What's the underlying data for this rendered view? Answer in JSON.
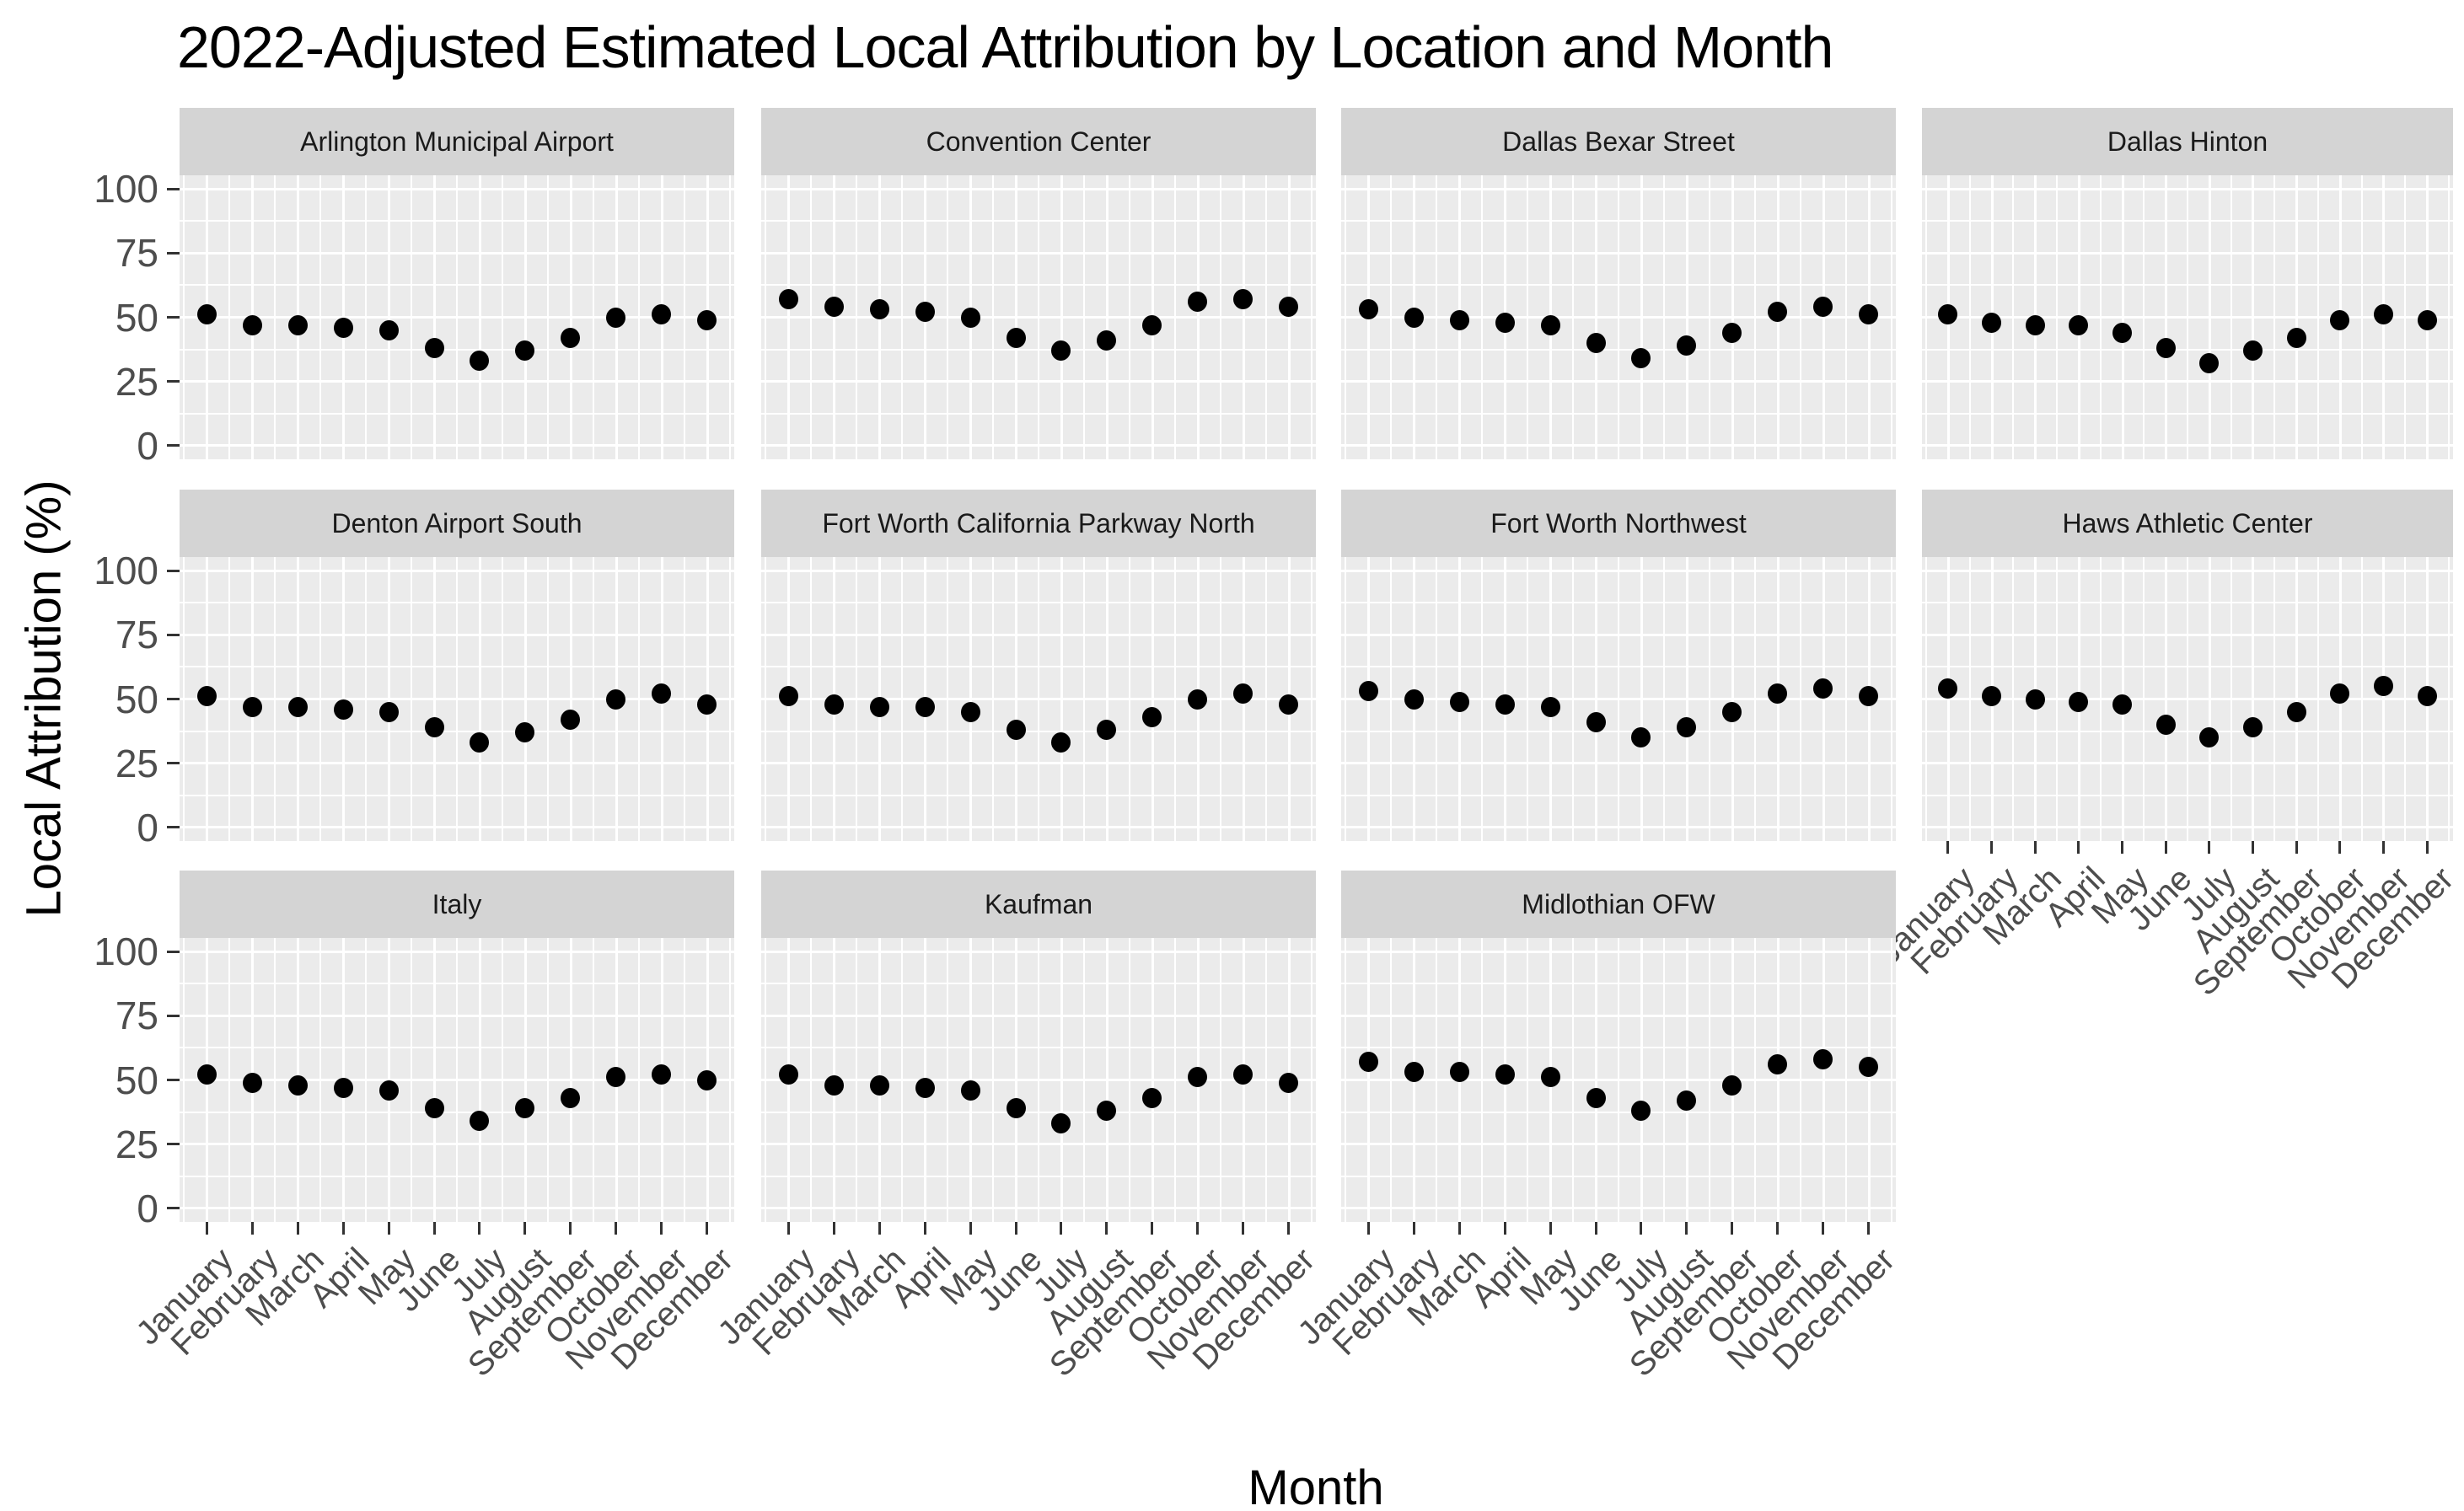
{
  "title": "2022-Adjusted Estimated Local Attribution by Location and Month",
  "axes": {
    "x_title": "Month",
    "y_title": "Local Attribution (%)",
    "y_ticks": [
      100,
      75,
      50,
      25,
      0
    ],
    "months": [
      "January",
      "February",
      "March",
      "April",
      "May",
      "June",
      "July",
      "August",
      "September",
      "October",
      "November",
      "December"
    ]
  },
  "colors": {
    "panel_background": "#EBEBEB",
    "strip_background": "#D4D4D4",
    "gridline": "#FFFFFF",
    "point": "#000000",
    "tick_label": "#4D4D4D",
    "axis_tick": "#333333",
    "title": "#000000"
  },
  "chart_data": {
    "type": "scatter",
    "title": "2022-Adjusted Estimated Local Attribution by Location and Month",
    "xlabel": "Month",
    "ylabel": "Local Attribution (%)",
    "ylim": [
      0,
      100
    ],
    "y_major_breaks": [
      0,
      25,
      50,
      75,
      100
    ],
    "y_minor_breaks": [
      12.5,
      37.5,
      62.5,
      87.5
    ],
    "grid": true,
    "legend_position": "none",
    "facet_layout": {
      "nrow": 3,
      "ncol": 4
    },
    "categories": [
      "January",
      "February",
      "March",
      "April",
      "May",
      "June",
      "July",
      "August",
      "September",
      "October",
      "November",
      "December"
    ],
    "facets": [
      {
        "name": "Arlington Municipal Airport",
        "values": [
          51,
          47,
          47,
          46,
          45,
          38,
          33,
          37,
          42,
          50,
          51,
          49
        ]
      },
      {
        "name": "Convention Center",
        "values": [
          57,
          54,
          53,
          52,
          50,
          42,
          37,
          41,
          47,
          56,
          57,
          54
        ]
      },
      {
        "name": "Dallas Bexar Street",
        "values": [
          53,
          50,
          49,
          48,
          47,
          40,
          34,
          39,
          44,
          52,
          54,
          51
        ]
      },
      {
        "name": "Dallas Hinton",
        "values": [
          51,
          48,
          47,
          47,
          44,
          38,
          32,
          37,
          42,
          49,
          51,
          49
        ]
      },
      {
        "name": "Denton Airport South",
        "values": [
          51,
          47,
          47,
          46,
          45,
          39,
          33,
          37,
          42,
          50,
          52,
          48
        ]
      },
      {
        "name": "Fort Worth California Parkway North",
        "values": [
          51,
          48,
          47,
          47,
          45,
          38,
          33,
          38,
          43,
          50,
          52,
          48
        ]
      },
      {
        "name": "Fort Worth Northwest",
        "values": [
          53,
          50,
          49,
          48,
          47,
          41,
          35,
          39,
          45,
          52,
          54,
          51
        ]
      },
      {
        "name": "Haws Athletic Center",
        "values": [
          54,
          51,
          50,
          49,
          48,
          40,
          35,
          39,
          45,
          52,
          55,
          51
        ]
      },
      {
        "name": "Italy",
        "values": [
          52,
          49,
          48,
          47,
          46,
          39,
          34,
          39,
          43,
          51,
          52,
          50
        ]
      },
      {
        "name": "Kaufman",
        "values": [
          52,
          48,
          48,
          47,
          46,
          39,
          33,
          38,
          43,
          51,
          52,
          49
        ]
      },
      {
        "name": "Midlothian OFW",
        "values": [
          57,
          53,
          53,
          52,
          51,
          43,
          38,
          42,
          48,
          56,
          58,
          55
        ]
      }
    ]
  }
}
